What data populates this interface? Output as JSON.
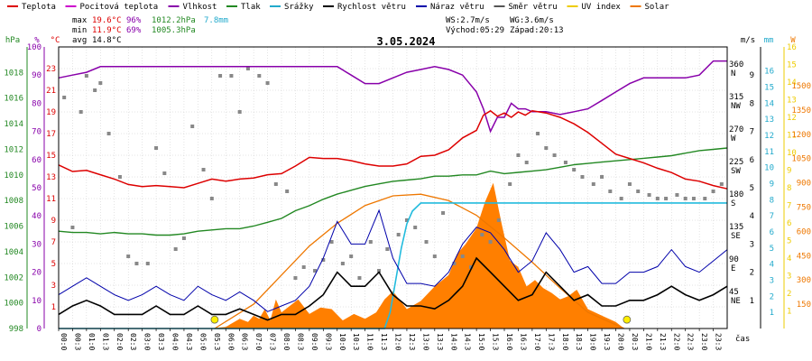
{
  "chart_data": {
    "type": "line",
    "title": "3.05.2024",
    "legend": [
      {
        "label": "Teplota",
        "color": "#dd0000"
      },
      {
        "label": "Pocitová teplota",
        "color": "#cc00cc"
      },
      {
        "label": "Vlhkost",
        "color": "#8800aa"
      },
      {
        "label": "Tlak",
        "color": "#228822"
      },
      {
        "label": "Srážky",
        "color": "#22aacc"
      },
      {
        "label": "Rychlost větru",
        "color": "#000000"
      },
      {
        "label": "Náraz větru",
        "color": "#0000aa"
      },
      {
        "label": "Směr větru",
        "color": "#555555"
      },
      {
        "label": "UV index",
        "color": "#eecc00"
      },
      {
        "label": "Solar",
        "color": "#ee7700"
      }
    ],
    "stats": {
      "max_label": "max",
      "max_temp": "19.6°C",
      "max_hum": "96%",
      "max_press": "1012.2hPa",
      "rain": "7.8mm",
      "min_label": "min",
      "min_temp": "11.9°C",
      "min_hum": "69%",
      "min_press": "1005.3hPa",
      "avg_label": "avg",
      "avg_temp": "14.8°C",
      "ws": "WS:2.7m/s",
      "wg": "WG:3.6m/s",
      "sunrise": "Východ:05:29",
      "sunset": "Západ:20:13"
    },
    "axis_units": {
      "hpa": "hPa",
      "pct": "%",
      "celsius": "°C",
      "ms": "m/s",
      "mm": "mm",
      "w": "W",
      "time": "čas"
    },
    "axes": {
      "pressure_ticks": [
        998,
        1000,
        1002,
        1004,
        1006,
        1008,
        1010,
        1012,
        1014,
        1016,
        1018
      ],
      "humidity_ticks": [
        0,
        10,
        20,
        30,
        40,
        50,
        60,
        70,
        80,
        90,
        100
      ],
      "temp_ticks": [
        1,
        3,
        5,
        7,
        9,
        11,
        13,
        15,
        17,
        19,
        21,
        23
      ],
      "direction_ticks": [
        {
          "value": 45,
          "label": "45",
          "sub": "NE"
        },
        {
          "value": 90,
          "label": "90",
          "sub": "E"
        },
        {
          "value": 135,
          "label": "135",
          "sub": "SE"
        },
        {
          "value": 180,
          "label": "180",
          "sub": "S"
        },
        {
          "value": 225,
          "label": "225",
          "sub": "SW"
        },
        {
          "value": 270,
          "label": "270",
          "sub": "W"
        },
        {
          "value": 315,
          "label": "315",
          "sub": "NW"
        },
        {
          "value": 360,
          "label": "360",
          "sub": "N"
        }
      ],
      "wind_ticks": [
        1,
        2,
        3,
        4,
        5,
        6,
        7,
        8,
        9
      ],
      "rain_ticks": [
        1,
        2,
        3,
        4,
        5,
        6,
        7,
        8,
        9,
        10,
        11,
        12,
        13,
        14,
        15,
        16
      ],
      "uv_ticks": [
        1,
        2,
        3,
        4,
        5,
        6,
        7,
        8,
        9,
        10,
        11,
        12,
        13,
        14,
        15,
        16
      ],
      "solar_ticks": [
        150,
        300,
        450,
        600,
        750,
        900,
        1050,
        1200,
        1350,
        1500
      ],
      "time_ticks": [
        "00:0",
        "00:3",
        "01:0",
        "01:3",
        "02:0",
        "02:3",
        "03:0",
        "03:3",
        "04:0",
        "04:3",
        "05:0",
        "05:3",
        "06:0",
        "06:3",
        "07:0",
        "07:3",
        "08:0",
        "08:3",
        "09:0",
        "09:3",
        "10:0",
        "10:3",
        "11:0",
        "11:3",
        "12:0",
        "12:3",
        "13:0",
        "13:3",
        "14:0",
        "14:3",
        "15:0",
        "15:3",
        "16:0",
        "16:3",
        "17:0",
        "17:3",
        "18:0",
        "18:3",
        "19:0",
        "19:3",
        "20:0",
        "20:3",
        "21:0",
        "21:3",
        "22:0",
        "22:3",
        "23:0",
        "23:3"
      ]
    },
    "ranges": {
      "hours": [
        0,
        24
      ],
      "temp": [
        -1,
        25
      ],
      "humidity": [
        0,
        100
      ],
      "pressure": [
        998,
        1020
      ],
      "wind": [
        0,
        10
      ],
      "rain": [
        0,
        17.5
      ],
      "solar": [
        0,
        1740
      ],
      "direction": [
        0,
        390
      ]
    },
    "series": [
      {
        "name": "Teplota",
        "unit": "°C",
        "x": [
          0,
          0.5,
          1,
          1.5,
          2,
          2.5,
          3,
          3.5,
          4,
          4.5,
          5,
          5.5,
          6,
          6.5,
          7,
          7.5,
          8,
          8.5,
          9,
          9.5,
          10,
          10.5,
          11,
          11.5,
          12,
          12.5,
          13,
          13.5,
          14,
          14.5,
          15,
          15.25,
          15.5,
          15.75,
          16,
          16.25,
          16.5,
          16.75,
          17,
          17.5,
          18,
          18.5,
          19,
          19.5,
          20,
          20.5,
          21,
          21.5,
          22,
          22.5,
          23,
          23.5,
          24
        ],
        "y": [
          14.1,
          13.5,
          13.6,
          13.2,
          12.8,
          12.3,
          12.1,
          12.2,
          12.1,
          12.0,
          12.4,
          12.8,
          12.6,
          12.8,
          12.9,
          13.2,
          13.3,
          14.0,
          14.8,
          14.7,
          14.7,
          14.5,
          14.2,
          14.0,
          14.0,
          14.2,
          14.9,
          15.0,
          15.5,
          16.6,
          17.3,
          18.7,
          19.1,
          18.6,
          18.9,
          18.5,
          19.0,
          18.7,
          19.1,
          18.9,
          18.5,
          17.9,
          17.1,
          16.1,
          15.1,
          14.7,
          14.3,
          13.8,
          13.4,
          12.8,
          12.6,
          12.2,
          11.9
        ]
      },
      {
        "name": "Pocitová teplota",
        "unit": "°C",
        "x": [
          0,
          24
        ],
        "y": [
          null,
          null
        ]
      },
      {
        "name": "Vlhkost",
        "unit": "%",
        "x": [
          0,
          0.5,
          1,
          1.5,
          2,
          2.5,
          3,
          3.5,
          4,
          4.5,
          5,
          5.5,
          6,
          6.5,
          7,
          7.5,
          8,
          8.5,
          9,
          9.5,
          10,
          10.5,
          11,
          11.5,
          12,
          12.5,
          13,
          13.5,
          14,
          14.5,
          15,
          15.25,
          15.5,
          15.75,
          16,
          16.25,
          16.5,
          16.75,
          17,
          17.5,
          18,
          18.5,
          19,
          19.5,
          20,
          20.5,
          21,
          21.5,
          22,
          22.5,
          23,
          23.5,
          24
        ],
        "y": [
          89,
          90,
          91,
          93,
          93,
          93,
          93,
          93,
          93,
          93,
          93,
          93,
          93,
          93,
          93,
          93,
          93,
          93,
          93,
          93,
          93,
          90,
          87,
          87,
          89,
          91,
          92,
          93,
          92,
          90,
          84,
          78,
          70,
          75,
          75,
          80,
          78,
          78,
          77,
          77,
          76,
          77,
          78,
          81,
          84,
          87,
          89,
          89,
          89,
          89,
          90,
          95,
          95
        ]
      },
      {
        "name": "Tlak",
        "unit": "hPa",
        "x": [
          0,
          0.5,
          1,
          1.5,
          2,
          2.5,
          3,
          3.5,
          4,
          4.5,
          5,
          5.5,
          6,
          6.5,
          7,
          7.5,
          8,
          8.5,
          9,
          9.5,
          10,
          10.5,
          11,
          11.5,
          12,
          12.5,
          13,
          13.5,
          14,
          14.5,
          15,
          15.5,
          16,
          16.5,
          17,
          17.5,
          18,
          18.5,
          19,
          19.5,
          20,
          20.5,
          21,
          21.5,
          22,
          22.5,
          23,
          23.5,
          24
        ],
        "y": [
          1005.6,
          1005.5,
          1005.5,
          1005.4,
          1005.5,
          1005.4,
          1005.4,
          1005.3,
          1005.3,
          1005.4,
          1005.6,
          1005.7,
          1005.8,
          1005.8,
          1006.0,
          1006.3,
          1006.6,
          1007.2,
          1007.6,
          1008.1,
          1008.5,
          1008.8,
          1009.1,
          1009.3,
          1009.5,
          1009.6,
          1009.7,
          1009.9,
          1009.9,
          1010.0,
          1010.0,
          1010.3,
          1010.1,
          1010.2,
          1010.3,
          1010.4,
          1010.6,
          1010.8,
          1010.9,
          1011.0,
          1011.1,
          1011.2,
          1011.3,
          1011.4,
          1011.5,
          1011.7,
          1011.9,
          1012.0,
          1012.1
        ]
      },
      {
        "name": "Srážky",
        "unit": "mm",
        "x": [
          0,
          11.7,
          11.9,
          12.1,
          12.3,
          12.5,
          12.7,
          13.0,
          24
        ],
        "y": [
          0,
          0,
          1.0,
          3.0,
          5.0,
          6.5,
          7.3,
          7.8,
          7.8
        ]
      },
      {
        "name": "Rychlost větru",
        "unit": "m/s",
        "x": [
          0,
          0.5,
          1,
          1.5,
          2,
          2.5,
          3,
          3.5,
          4,
          4.5,
          5,
          5.5,
          6,
          6.5,
          7,
          7.5,
          8,
          8.5,
          9,
          9.5,
          10,
          10.5,
          11,
          11.5,
          12,
          12.5,
          13,
          13.5,
          14,
          14.5,
          15,
          15.5,
          16,
          16.5,
          17,
          17.5,
          18,
          18.5,
          19,
          19.5,
          20,
          20.5,
          21,
          21.5,
          22,
          22.5,
          23,
          23.5,
          24
        ],
        "y": [
          0.5,
          0.8,
          1.0,
          0.8,
          0.5,
          0.5,
          0.5,
          0.8,
          0.5,
          0.5,
          0.8,
          0.5,
          0.5,
          0.7,
          0.5,
          0.3,
          0.5,
          0.5,
          0.8,
          1.2,
          2.0,
          1.5,
          1.5,
          2.0,
          1.2,
          0.8,
          0.8,
          0.7,
          1.0,
          1.5,
          2.5,
          2.0,
          1.5,
          1.0,
          1.2,
          2.0,
          1.5,
          1.0,
          1.2,
          0.8,
          0.8,
          1.0,
          1.0,
          1.2,
          1.5,
          1.2,
          1.0,
          1.2,
          1.5
        ]
      },
      {
        "name": "Náraz větru",
        "unit": "m/s",
        "x": [
          0,
          0.5,
          1,
          1.5,
          2,
          2.5,
          3,
          3.5,
          4,
          4.5,
          5,
          5.5,
          6,
          6.5,
          7,
          7.5,
          8,
          8.5,
          9,
          9.5,
          10,
          10.5,
          11,
          11.5,
          12,
          12.5,
          13,
          13.5,
          14,
          14.5,
          15,
          15.5,
          16,
          16.5,
          17,
          17.5,
          18,
          18.5,
          19,
          19.5,
          20,
          20.5,
          21,
          21.5,
          22,
          22.5,
          23,
          23.5,
          24
        ],
        "y": [
          1.2,
          1.5,
          1.8,
          1.5,
          1.2,
          1.0,
          1.2,
          1.5,
          1.2,
          1.0,
          1.5,
          1.2,
          1.0,
          1.3,
          1.0,
          0.6,
          0.8,
          1.0,
          1.5,
          2.5,
          3.8,
          3.0,
          3.0,
          4.2,
          2.5,
          1.6,
          1.6,
          1.5,
          2.0,
          3.0,
          3.6,
          3.4,
          2.8,
          2.0,
          2.4,
          3.4,
          2.8,
          2.0,
          2.2,
          1.6,
          1.6,
          2.0,
          2.0,
          2.2,
          2.8,
          2.2,
          2.0,
          2.4,
          2.8
        ]
      },
      {
        "name": "Směr větru",
        "unit": "°",
        "type": "scatter",
        "x": [
          0.2,
          0.5,
          0.8,
          1.0,
          1.3,
          1.5,
          1.8,
          2.2,
          2.5,
          2.8,
          3.2,
          3.5,
          3.8,
          4.2,
          4.5,
          4.8,
          5.2,
          5.5,
          5.8,
          6.2,
          6.5,
          6.8,
          7.2,
          7.5,
          7.8,
          8.2,
          8.5,
          8.8,
          9.2,
          9.5,
          9.8,
          10.2,
          10.5,
          10.8,
          11.2,
          11.5,
          11.8,
          12.2,
          12.5,
          12.8,
          13.2,
          13.5,
          13.8,
          14.2,
          14.5,
          14.8,
          15.2,
          15.5,
          15.8,
          16.2,
          16.5,
          16.8,
          17.2,
          17.5,
          17.8,
          18.2,
          18.5,
          18.8,
          19.2,
          19.5,
          19.8,
          20.2,
          20.5,
          20.8,
          21.2,
          21.5,
          21.8,
          22.2,
          22.5,
          22.8,
          23.2,
          23.5,
          23.8
        ],
        "y": [
          320,
          140,
          300,
          350,
          330,
          340,
          270,
          210,
          100,
          90,
          90,
          250,
          215,
          110,
          125,
          280,
          220,
          180,
          350,
          350,
          300,
          360,
          350,
          340,
          200,
          190,
          70,
          85,
          80,
          95,
          120,
          90,
          100,
          70,
          120,
          80,
          110,
          130,
          150,
          140,
          120,
          100,
          160,
          90,
          100,
          85,
          130,
          120,
          150,
          200,
          240,
          230,
          270,
          250,
          240,
          230,
          220,
          210,
          200,
          210,
          190,
          180,
          200,
          190,
          185,
          180,
          180,
          185,
          180,
          180,
          180,
          190,
          200
        ]
      },
      {
        "name": "UV index",
        "unit": "",
        "type": "scatter",
        "x": [
          5.6,
          20.4
        ],
        "y": [
          0.3,
          0.3
        ]
      },
      {
        "name": "Solar",
        "unit": "W/m²",
        "type": "area",
        "x": [
          0,
          5.4,
          6.0,
          6.5,
          6.8,
          7.0,
          7.2,
          7.4,
          7.6,
          7.8,
          8.0,
          8.3,
          8.6,
          9.0,
          9.4,
          9.8,
          10.2,
          10.6,
          11.0,
          11.4,
          11.7,
          12.0,
          12.5,
          13.0,
          13.5,
          14.0,
          14.3,
          14.6,
          15.0,
          15.3,
          15.6,
          15.9,
          16.2,
          16.5,
          16.8,
          17.1,
          17.4,
          17.7,
          18.0,
          18.3,
          18.6,
          19.0,
          19.5,
          20.0,
          20.3,
          24
        ],
        "y": [
          0,
          0,
          10,
          60,
          40,
          80,
          60,
          120,
          50,
          180,
          100,
          140,
          180,
          90,
          130,
          120,
          50,
          90,
          60,
          100,
          180,
          230,
          120,
          170,
          260,
          330,
          460,
          520,
          620,
          780,
          900,
          650,
          420,
          380,
          260,
          300,
          250,
          220,
          180,
          200,
          240,
          120,
          80,
          40,
          0,
          0
        ]
      },
      {
        "name": "Solar (clear sky)",
        "unit": "W/m²",
        "type": "line",
        "x": [
          5.6,
          7,
          8,
          9,
          10,
          11,
          12,
          13,
          14,
          15,
          16,
          17,
          18,
          19,
          20.3
        ],
        "y": [
          0,
          150,
          330,
          510,
          650,
          760,
          820,
          830,
          790,
          700,
          560,
          410,
          250,
          100,
          0
        ]
      }
    ]
  }
}
